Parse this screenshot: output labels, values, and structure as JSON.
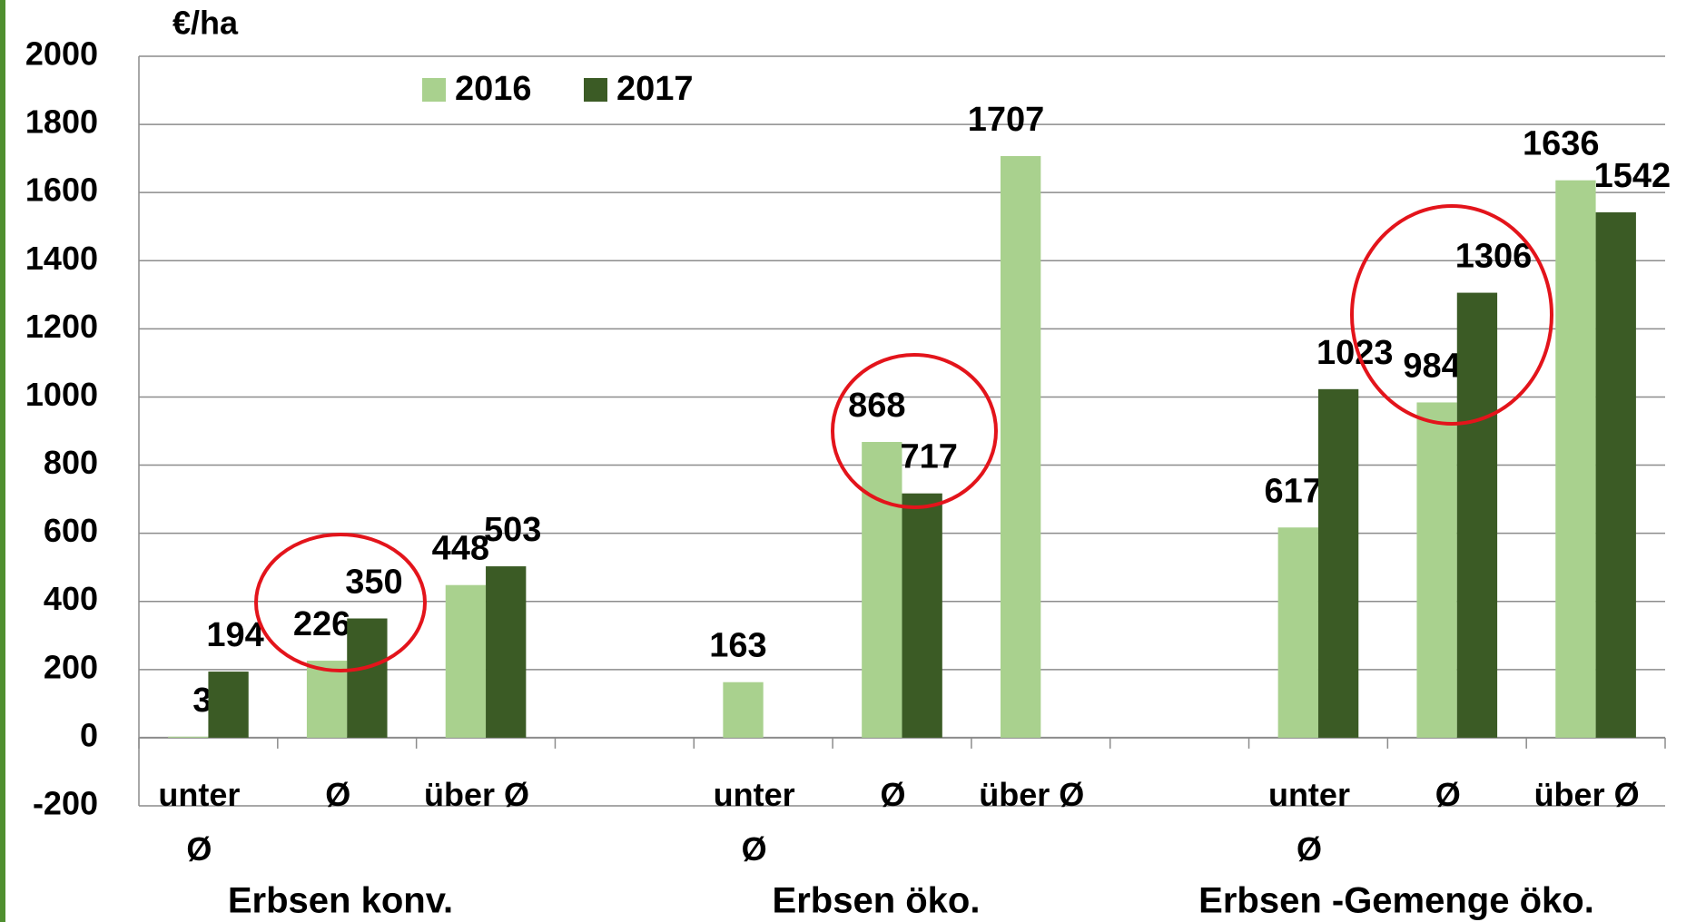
{
  "chart_data": {
    "type": "bar",
    "y_label": "€/ha",
    "categories": [
      "unter Ø",
      "Ø",
      "über Ø",
      null,
      "unter Ø",
      "Ø",
      "über Ø",
      null,
      "unter Ø",
      "Ø",
      "über Ø"
    ],
    "groups": [
      "Erbsen konv.",
      "Erbsen öko.",
      "Erbsen -Gemenge öko."
    ],
    "series": [
      {
        "name": "2016",
        "color": "#a9d18e",
        "values": [
          3,
          226,
          448,
          null,
          163,
          868,
          1707,
          null,
          617,
          984,
          1636
        ]
      },
      {
        "name": "2017",
        "color": "#3b5b25",
        "values": [
          194,
          350,
          503,
          null,
          null,
          717,
          null,
          null,
          1023,
          1306,
          1542
        ]
      }
    ],
    "ylim": [
      -200,
      2000
    ],
    "yticks": [
      -200,
      0,
      200,
      400,
      600,
      800,
      1000,
      1200,
      1400,
      1600,
      1800,
      2000
    ],
    "grid": true
  }
}
